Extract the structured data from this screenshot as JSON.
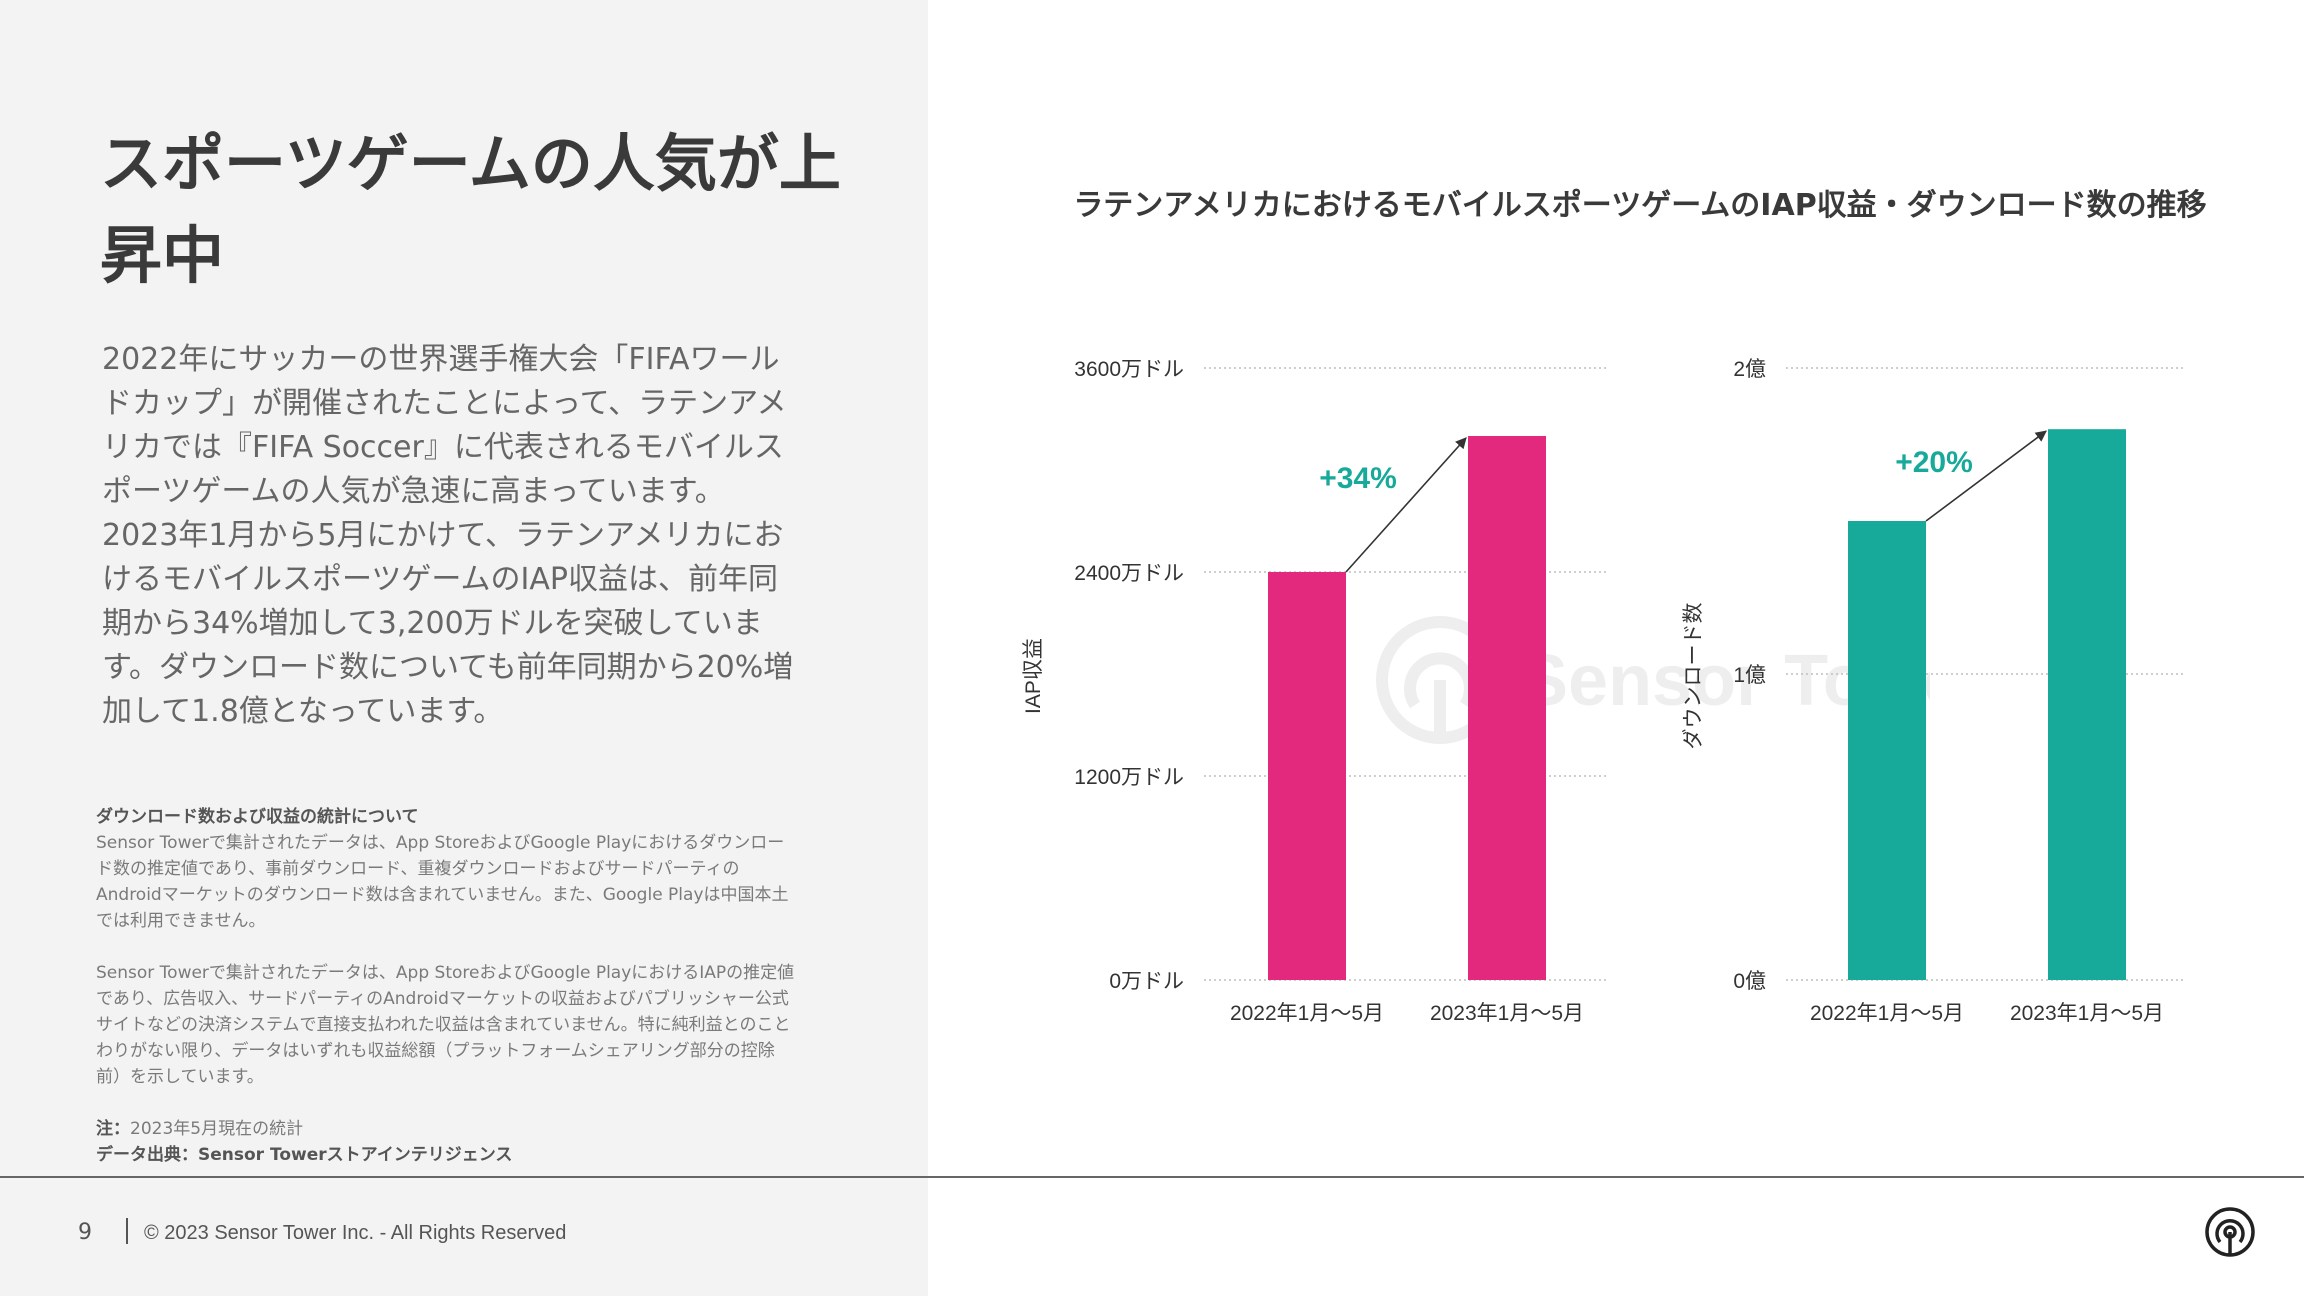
{
  "slide": {
    "title": "スポーツゲームの人気が上昇中",
    "body": "2022年にサッカーの世界選手権大会「FIFAワールドカップ」が開催されたことによって、ラテンアメリカでは『FIFA Soccer』に代表されるモバイルスポーツゲームの人気が急速に高まっています。2023年1月から5月にかけて、ラテンアメリカにおけるモバイルスポーツゲームのIAP収益は、前年同期から34%増加して3,200万ドルを突破しています。ダウンロード数についても前年同期から20%増加して1.8億となっています。",
    "notes": {
      "heading": "ダウンロード数および収益の統計について",
      "para1": "Sensor Towerで集計されたデータは、App StoreおよびGoogle Playにおけるダウンロード数の推定値であり、事前ダウンロード、重複ダウンロードおよびサードパーティのAndroidマーケットのダウンロード数は含まれていません。また、Google Playは中国本土では利用できません。",
      "para2": "Sensor Towerで集計されたデータは、App StoreおよびGoogle PlayにおけるIAPの推定値であり、広告収入、サードパーティのAndroidマーケットの収益およびパブリッシャー公式サイトなどの決済システムで直接支払われた収益は含まれていません。特に純利益とのことわりがない限り、データはいずれも収益総額（プラットフォームシェアリング部分の控除前）を示しています。",
      "note_label": "注：",
      "note_text": "2023年5月現在の統計",
      "source": "データ出典：Sensor Towerストアインテリジェンス"
    },
    "footer": {
      "page_number": "9",
      "copyright": "© 2023 Sensor Tower Inc. - All Rights Reserved"
    },
    "brand_icon": "sensor-tower-logo-icon",
    "watermark": "Sensor Tower"
  },
  "chart_title": "ラテンアメリカにおけるモバイルスポーツゲームのIAP収益・ダウンロード数の推移",
  "colors": {
    "revenue": "#e2297d",
    "downloads": "#17a99a",
    "growth_revenue": "#17a99a",
    "growth_downloads": "#17a99a",
    "grid": "#bdbdbd",
    "text": "#333333"
  },
  "chart_data": [
    {
      "type": "bar",
      "categories": [
        "2022年1月～5月",
        "2023年1月～5月"
      ],
      "values": [
        2400,
        3200
      ],
      "ylabel": "IAP収益",
      "ylim": [
        0,
        3600
      ],
      "yticks": [
        0,
        1200,
        2400,
        3600
      ],
      "ytick_labels": [
        "0万ドル",
        "1200万ドル",
        "2400万ドル",
        "3600万ドル"
      ],
      "grid": true,
      "annotation": "+34%",
      "color": "#e2297d"
    },
    {
      "type": "bar",
      "categories": [
        "2022年1月～5月",
        "2023年1月～5月"
      ],
      "values": [
        1.5,
        1.8
      ],
      "ylabel": "ダウンロード数",
      "ylim": [
        0,
        2
      ],
      "yticks": [
        0,
        1,
        2
      ],
      "ytick_labels": [
        "0億",
        "1億",
        "2億"
      ],
      "grid": true,
      "annotation": "+20%",
      "color": "#17a99a"
    }
  ]
}
